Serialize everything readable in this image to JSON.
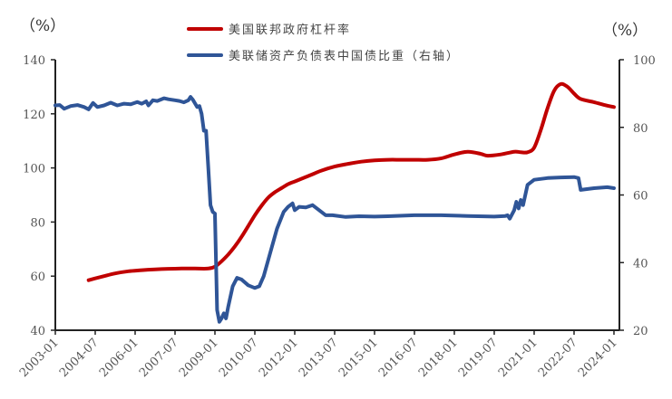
{
  "chart_data": {
    "type": "line",
    "title": "",
    "left_axis": {
      "label": "（%）",
      "range": [
        40,
        140
      ],
      "ticks": [
        40,
        60,
        80,
        100,
        120,
        140
      ]
    },
    "right_axis": {
      "label": "（%）",
      "range": [
        20,
        100
      ],
      "ticks": [
        20,
        40,
        60,
        80,
        100
      ]
    },
    "x_ticks": [
      "2003-01",
      "2004-07",
      "2006-01",
      "2007-07",
      "2009-01",
      "2010-07",
      "2012-01",
      "2013-07",
      "2015-01",
      "2016-07",
      "2018-01",
      "2019-07",
      "2021-01",
      "2022-07",
      "2024-01"
    ],
    "legend": [
      "美国联邦政府杠杆率",
      "美联储资产负债表中国债比重（右轴）"
    ],
    "series": [
      {
        "name": "美国联邦政府杠杆率",
        "axis": "left",
        "color": "#C00000",
        "points": [
          [
            "2004-04",
            58.5
          ],
          [
            "2004-10",
            59.8
          ],
          [
            "2005-04",
            61
          ],
          [
            "2005-10",
            61.8
          ],
          [
            "2006-04",
            62.2
          ],
          [
            "2006-10",
            62.5
          ],
          [
            "2007-04",
            62.7
          ],
          [
            "2007-10",
            62.8
          ],
          [
            "2008-04",
            62.8
          ],
          [
            "2008-10",
            62.8
          ],
          [
            "2009-01",
            63.5
          ],
          [
            "2009-04",
            65.5
          ],
          [
            "2009-07",
            68
          ],
          [
            "2009-10",
            71
          ],
          [
            "2010-01",
            74.5
          ],
          [
            "2010-04",
            78.5
          ],
          [
            "2010-07",
            82.5
          ],
          [
            "2010-10",
            86
          ],
          [
            "2011-01",
            89
          ],
          [
            "2011-04",
            91
          ],
          [
            "2011-07",
            92.5
          ],
          [
            "2011-10",
            94
          ],
          [
            "2012-01",
            95
          ],
          [
            "2012-04",
            96
          ],
          [
            "2012-07",
            97
          ],
          [
            "2012-10",
            98
          ],
          [
            "2013-01",
            99
          ],
          [
            "2013-07",
            100.5
          ],
          [
            "2014-01",
            101.5
          ],
          [
            "2014-07",
            102.3
          ],
          [
            "2015-01",
            102.8
          ],
          [
            "2015-07",
            103
          ],
          [
            "2016-01",
            103
          ],
          [
            "2016-07",
            103
          ],
          [
            "2017-01",
            103
          ],
          [
            "2017-07",
            103.5
          ],
          [
            "2018-01",
            105
          ],
          [
            "2018-07",
            106
          ],
          [
            "2019-01",
            105.2
          ],
          [
            "2019-04",
            104.5
          ],
          [
            "2019-10",
            105
          ],
          [
            "2020-04",
            106
          ],
          [
            "2020-07",
            105.8
          ],
          [
            "2020-10",
            105.8
          ],
          [
            "2021-01",
            107.5
          ],
          [
            "2021-04",
            114
          ],
          [
            "2021-07",
            122
          ],
          [
            "2021-10",
            128.5
          ],
          [
            "2022-01",
            131
          ],
          [
            "2022-04",
            130
          ],
          [
            "2022-07",
            127.5
          ],
          [
            "2022-10",
            125.5
          ],
          [
            "2023-04",
            124.3
          ],
          [
            "2023-10",
            123
          ],
          [
            "2024-01",
            122.5
          ]
        ]
      },
      {
        "name": "美联储资产负债表中国债比重（右轴）",
        "axis": "right",
        "color": "#2F5597",
        "points": [
          [
            "2003-01",
            86.5
          ],
          [
            "2003-03",
            86.6
          ],
          [
            "2003-05",
            85.5
          ],
          [
            "2003-08",
            86.3
          ],
          [
            "2003-11",
            86.6
          ],
          [
            "2004-02",
            86
          ],
          [
            "2004-04",
            85.3
          ],
          [
            "2004-06",
            87.2
          ],
          [
            "2004-08",
            86
          ],
          [
            "2004-11",
            86.5
          ],
          [
            "2005-02",
            87.3
          ],
          [
            "2005-05",
            86.5
          ],
          [
            "2005-08",
            87
          ],
          [
            "2005-11",
            86.8
          ],
          [
            "2006-02",
            87.5
          ],
          [
            "2006-04",
            87
          ],
          [
            "2006-06",
            87.7
          ],
          [
            "2006-07",
            86.5
          ],
          [
            "2006-09",
            88
          ],
          [
            "2006-11",
            87.8
          ],
          [
            "2007-02",
            88.6
          ],
          [
            "2007-04",
            88.3
          ],
          [
            "2007-07",
            88
          ],
          [
            "2007-09",
            87.8
          ],
          [
            "2007-11",
            87.4
          ],
          [
            "2008-01",
            88
          ],
          [
            "2008-02",
            89
          ],
          [
            "2008-03",
            88.2
          ],
          [
            "2008-05",
            86
          ],
          [
            "2008-06",
            86.3
          ],
          [
            "2008-07",
            84
          ],
          [
            "2008-08",
            79
          ],
          [
            "2008-09",
            79
          ],
          [
            "2008-10",
            68
          ],
          [
            "2008-11",
            57
          ],
          [
            "2008-12",
            55
          ],
          [
            "2009-01",
            54.5
          ],
          [
            "2009-02",
            26
          ],
          [
            "2009-03",
            22.5
          ],
          [
            "2009-04",
            23.5
          ],
          [
            "2009-05",
            25
          ],
          [
            "2009-06",
            23.5
          ],
          [
            "2009-07",
            27
          ],
          [
            "2009-09",
            33
          ],
          [
            "2009-11",
            35.5
          ],
          [
            "2010-01",
            35
          ],
          [
            "2010-04",
            33.3
          ],
          [
            "2010-07",
            32.5
          ],
          [
            "2010-09",
            33
          ],
          [
            "2010-11",
            36
          ],
          [
            "2011-02",
            43
          ],
          [
            "2011-05",
            50
          ],
          [
            "2011-08",
            55
          ],
          [
            "2011-10",
            56.5
          ],
          [
            "2011-12",
            57.5
          ],
          [
            "2012-01",
            55.5
          ],
          [
            "2012-03",
            56.5
          ],
          [
            "2012-06",
            56.3
          ],
          [
            "2012-09",
            57
          ],
          [
            "2012-12",
            55.5
          ],
          [
            "2013-03",
            54
          ],
          [
            "2013-06",
            54
          ],
          [
            "2013-12",
            53.5
          ],
          [
            "2014-06",
            53.7
          ],
          [
            "2015-01",
            53.6
          ],
          [
            "2015-07",
            53.7
          ],
          [
            "2016-07",
            54
          ],
          [
            "2017-07",
            54
          ],
          [
            "2018-07",
            53.8
          ],
          [
            "2019-07",
            53.6
          ],
          [
            "2019-12",
            53.8
          ],
          [
            "2020-01",
            54
          ],
          [
            "2020-02",
            53
          ],
          [
            "2020-04",
            55.5
          ],
          [
            "2020-05",
            58
          ],
          [
            "2020-06",
            56
          ],
          [
            "2020-07",
            58.5
          ],
          [
            "2020-08",
            57
          ],
          [
            "2020-10",
            63
          ],
          [
            "2021-01",
            64.5
          ],
          [
            "2021-07",
            65
          ],
          [
            "2022-01",
            65.2
          ],
          [
            "2022-07",
            65.3
          ],
          [
            "2022-09",
            65
          ],
          [
            "2022-10",
            61.5
          ],
          [
            "2023-04",
            62
          ],
          [
            "2023-10",
            62.3
          ],
          [
            "2024-01",
            62
          ]
        ]
      }
    ]
  },
  "labels": {
    "left_unit": "（%）",
    "right_unit": "（%）",
    "legend_red": "美国联邦政府杠杆率",
    "legend_blue": "美联储资产负债表中国债比重（右轴）"
  }
}
